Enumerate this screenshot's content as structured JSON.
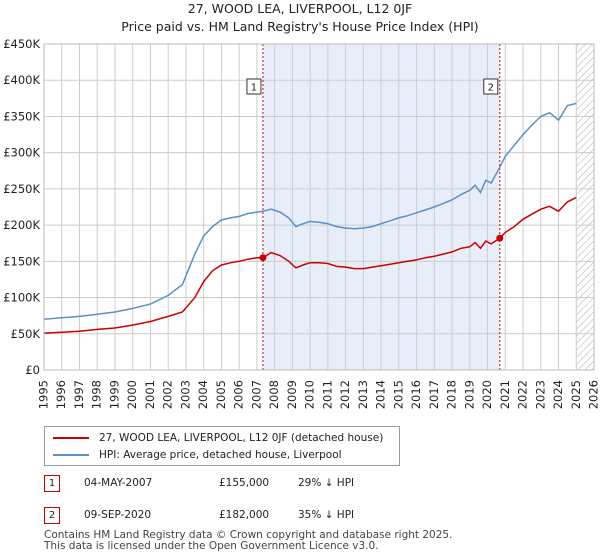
{
  "header": {
    "title": "27, WOOD LEA, LIVERPOOL, L12 0JF",
    "subtitle": "Price paid vs. HM Land Registry's House Price Index (HPI)"
  },
  "colors": {
    "price": "#cc0000",
    "hpi": "#5b8fc7",
    "shade": "#e8eef9",
    "grid": "#cccccc"
  },
  "chart_data": {
    "type": "line",
    "xlim": [
      1995,
      2026
    ],
    "ylim": [
      0,
      450000
    ],
    "x_ticks": [
      "1995",
      "1996",
      "1997",
      "1998",
      "1999",
      "2000",
      "2001",
      "2002",
      "2003",
      "2004",
      "2005",
      "2006",
      "2007",
      "2008",
      "2009",
      "2010",
      "2011",
      "2012",
      "2013",
      "2014",
      "2015",
      "2016",
      "2017",
      "2018",
      "2019",
      "2020",
      "2021",
      "2022",
      "2023",
      "2024",
      "2025",
      "2026"
    ],
    "y_ticks": [
      {
        "value": 0,
        "label": "£0"
      },
      {
        "value": 50000,
        "label": "£50K"
      },
      {
        "value": 100000,
        "label": "£100K"
      },
      {
        "value": 150000,
        "label": "£150K"
      },
      {
        "value": 200000,
        "label": "£200K"
      },
      {
        "value": 250000,
        "label": "£250K"
      },
      {
        "value": 300000,
        "label": "£300K"
      },
      {
        "value": 350000,
        "label": "£350K"
      },
      {
        "value": 400000,
        "label": "£400K"
      },
      {
        "value": 450000,
        "label": "£450K"
      }
    ],
    "shaded_range": [
      2007.34,
      2020.69
    ],
    "hatched_from": 2025.0,
    "series": [
      {
        "name": "27, WOOD LEA, LIVERPOOL, L12 0JF (detached house)",
        "color": "#cc0000",
        "points": [
          [
            1995.0,
            51000
          ],
          [
            1996.0,
            52000
          ],
          [
            1997.0,
            53500
          ],
          [
            1998.0,
            56000
          ],
          [
            1999.0,
            58000
          ],
          [
            2000.0,
            62000
          ],
          [
            2001.0,
            67000
          ],
          [
            2002.0,
            74000
          ],
          [
            2002.8,
            80000
          ],
          [
            2003.5,
            100000
          ],
          [
            2004.0,
            122000
          ],
          [
            2004.5,
            137000
          ],
          [
            2005.0,
            145000
          ],
          [
            2005.5,
            148000
          ],
          [
            2006.0,
            150000
          ],
          [
            2006.5,
            153000
          ],
          [
            2007.0,
            155000
          ],
          [
            2007.34,
            155000
          ],
          [
            2007.8,
            162000
          ],
          [
            2008.3,
            158000
          ],
          [
            2008.8,
            150000
          ],
          [
            2009.2,
            141000
          ],
          [
            2009.6,
            145000
          ],
          [
            2010.0,
            148000
          ],
          [
            2010.5,
            148000
          ],
          [
            2011.0,
            147000
          ],
          [
            2011.5,
            143000
          ],
          [
            2012.0,
            142000
          ],
          [
            2012.5,
            140000
          ],
          [
            2013.0,
            140000
          ],
          [
            2013.5,
            142000
          ],
          [
            2014.0,
            144000
          ],
          [
            2014.5,
            146000
          ],
          [
            2015.0,
            148000
          ],
          [
            2015.5,
            150000
          ],
          [
            2016.0,
            152000
          ],
          [
            2016.5,
            155000
          ],
          [
            2017.0,
            157000
          ],
          [
            2017.5,
            160000
          ],
          [
            2018.0,
            163000
          ],
          [
            2018.5,
            168000
          ],
          [
            2019.0,
            170000
          ],
          [
            2019.3,
            176000
          ],
          [
            2019.6,
            168000
          ],
          [
            2019.9,
            178000
          ],
          [
            2020.2,
            174000
          ],
          [
            2020.69,
            182000
          ],
          [
            2021.0,
            190000
          ],
          [
            2021.5,
            198000
          ],
          [
            2022.0,
            208000
          ],
          [
            2022.5,
            215000
          ],
          [
            2023.0,
            222000
          ],
          [
            2023.5,
            226000
          ],
          [
            2024.0,
            219000
          ],
          [
            2024.5,
            232000
          ],
          [
            2025.0,
            238000
          ]
        ]
      },
      {
        "name": "HPI: Average price, detached house, Liverpool",
        "color": "#5b8fc7",
        "points": [
          [
            1995.0,
            70000
          ],
          [
            1996.0,
            72000
          ],
          [
            1997.0,
            74000
          ],
          [
            1998.0,
            77000
          ],
          [
            1999.0,
            80000
          ],
          [
            2000.0,
            85000
          ],
          [
            2001.0,
            91000
          ],
          [
            2002.0,
            103000
          ],
          [
            2002.8,
            118000
          ],
          [
            2003.5,
            160000
          ],
          [
            2004.0,
            185000
          ],
          [
            2004.5,
            198000
          ],
          [
            2005.0,
            207000
          ],
          [
            2005.5,
            210000
          ],
          [
            2006.0,
            212000
          ],
          [
            2006.5,
            216000
          ],
          [
            2007.0,
            218000
          ],
          [
            2007.34,
            219000
          ],
          [
            2007.8,
            222000
          ],
          [
            2008.3,
            218000
          ],
          [
            2008.8,
            210000
          ],
          [
            2009.2,
            198000
          ],
          [
            2009.6,
            202000
          ],
          [
            2010.0,
            205000
          ],
          [
            2010.5,
            204000
          ],
          [
            2011.0,
            202000
          ],
          [
            2011.5,
            198000
          ],
          [
            2012.0,
            196000
          ],
          [
            2012.5,
            195000
          ],
          [
            2013.0,
            196000
          ],
          [
            2013.5,
            198000
          ],
          [
            2014.0,
            202000
          ],
          [
            2014.5,
            206000
          ],
          [
            2015.0,
            210000
          ],
          [
            2015.5,
            213000
          ],
          [
            2016.0,
            217000
          ],
          [
            2016.5,
            221000
          ],
          [
            2017.0,
            225000
          ],
          [
            2017.5,
            230000
          ],
          [
            2018.0,
            235000
          ],
          [
            2018.5,
            242000
          ],
          [
            2019.0,
            248000
          ],
          [
            2019.3,
            255000
          ],
          [
            2019.6,
            245000
          ],
          [
            2019.9,
            262000
          ],
          [
            2020.2,
            258000
          ],
          [
            2020.69,
            280000
          ],
          [
            2021.0,
            295000
          ],
          [
            2021.5,
            310000
          ],
          [
            2022.0,
            325000
          ],
          [
            2022.5,
            338000
          ],
          [
            2023.0,
            350000
          ],
          [
            2023.5,
            355000
          ],
          [
            2024.0,
            345000
          ],
          [
            2024.5,
            365000
          ],
          [
            2025.0,
            368000
          ]
        ]
      }
    ],
    "markers": [
      {
        "label": "1",
        "x": 2007.34,
        "y": 155000
      },
      {
        "label": "2",
        "x": 2020.69,
        "y": 182000
      }
    ]
  },
  "legend": {
    "price_label": "27, WOOD LEA, LIVERPOOL, L12 0JF (detached house)",
    "hpi_label": "HPI: Average price, detached house, Liverpool"
  },
  "transactions": [
    {
      "num": "1",
      "date": "04-MAY-2007",
      "price": "£155,000",
      "hpi": "29% ↓ HPI"
    },
    {
      "num": "2",
      "date": "09-SEP-2020",
      "price": "£182,000",
      "hpi": "35% ↓ HPI"
    }
  ],
  "footer": {
    "line1": "Contains HM Land Registry data © Crown copyright and database right 2025.",
    "line2": "This data is licensed under the Open Government Licence v3.0."
  }
}
